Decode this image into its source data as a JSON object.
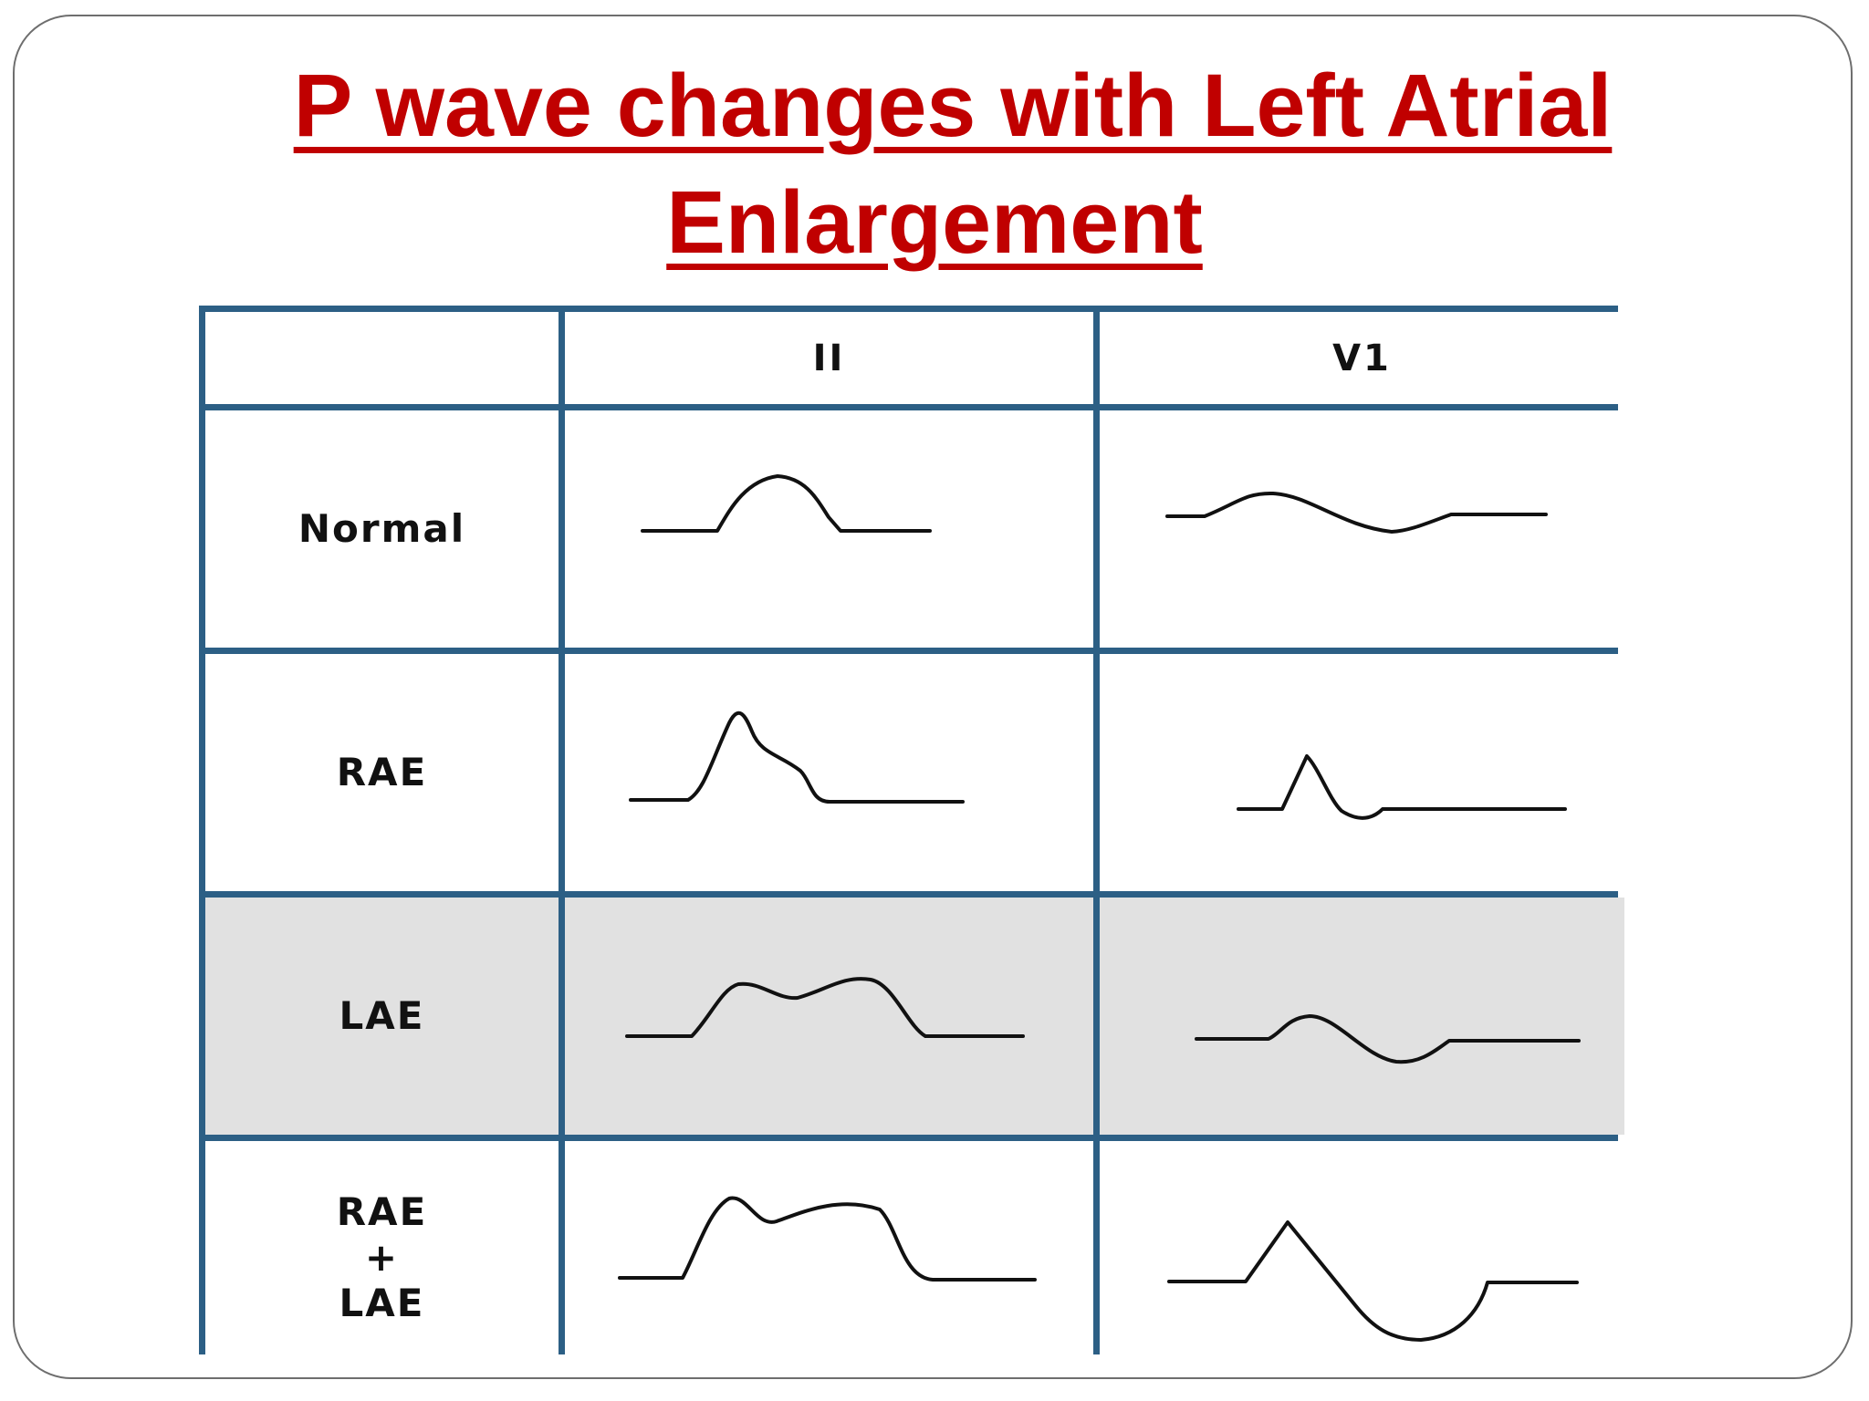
{
  "title": {
    "line1": "P wave changes with Left Atrial",
    "line2": "Enlargement"
  },
  "table": {
    "columns": [
      "",
      "II",
      "V1"
    ],
    "rows": [
      {
        "label_lines": [
          "Normal"
        ],
        "shaded": false
      },
      {
        "label_lines": [
          "RAE"
        ],
        "shaded": false
      },
      {
        "label_lines": [
          "LAE"
        ],
        "shaded": true
      },
      {
        "label_lines": [
          "RAE",
          "+",
          "LAE"
        ],
        "shaded": false
      }
    ]
  },
  "colors": {
    "title": "#c00000",
    "grid_border": "#2c5f85",
    "shaded_row": "#e1e1e1",
    "trace": "#111111"
  }
}
